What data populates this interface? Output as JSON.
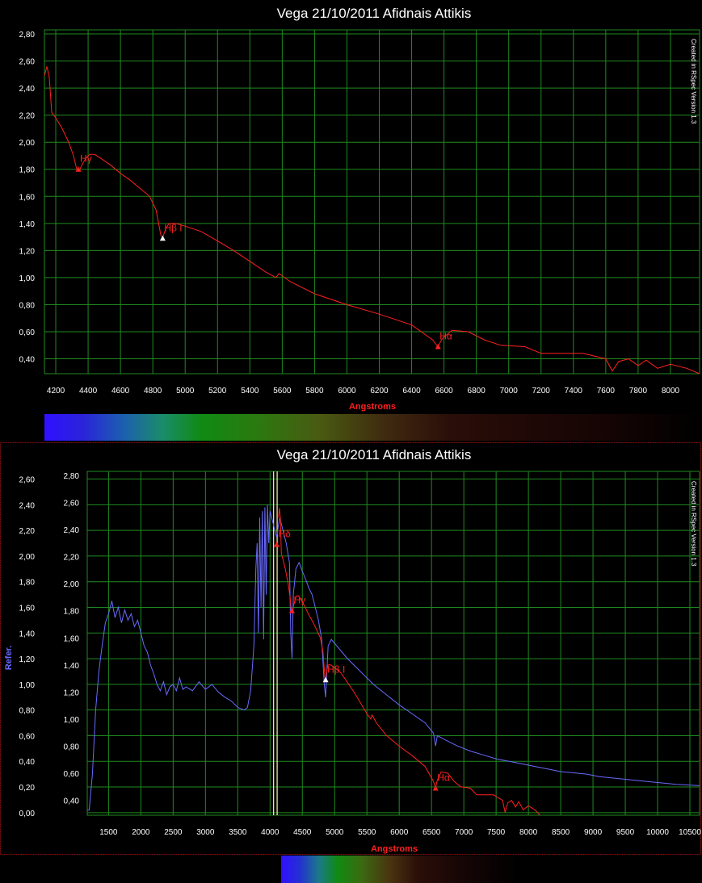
{
  "chart_data": [
    {
      "type": "line",
      "title": "Vega 21/10/2011 Afidnais Attikis",
      "xlabel": "Angstroms",
      "ylabel": "",
      "watermark": "Created in RSpec Version 1.3",
      "xlim": [
        4130,
        8180
      ],
      "ylim": [
        0.29,
        2.83
      ],
      "x_ticks": [
        "4200",
        "4400",
        "4600",
        "4800",
        "5000",
        "5200",
        "5400",
        "5600",
        "5800",
        "6000",
        "6200",
        "6400",
        "6600",
        "6800",
        "7000",
        "7200",
        "7400",
        "7600",
        "7800",
        "8000"
      ],
      "y_ticks": [
        "0,40",
        "0,60",
        "0,80",
        "1,00",
        "1,20",
        "1,40",
        "1,60",
        "1,80",
        "2,00",
        "2,20",
        "2,40",
        "2,60",
        "2,80"
      ],
      "grid": true,
      "series": [
        {
          "color": "#ff2020",
          "points": [
            [
              4130,
              2.49
            ],
            [
              4145,
              2.56
            ],
            [
              4160,
              2.48
            ],
            [
              4175,
              2.22
            ],
            [
              4200,
              2.18
            ],
            [
              4240,
              2.1
            ],
            [
              4280,
              2.0
            ],
            [
              4310,
              1.9
            ],
            [
              4330,
              1.8
            ],
            [
              4345,
              1.79
            ],
            [
              4365,
              1.84
            ],
            [
              4385,
              1.88
            ],
            [
              4410,
              1.91
            ],
            [
              4440,
              1.91
            ],
            [
              4480,
              1.88
            ],
            [
              4540,
              1.83
            ],
            [
              4600,
              1.77
            ],
            [
              4660,
              1.72
            ],
            [
              4720,
              1.66
            ],
            [
              4780,
              1.6
            ],
            [
              4820,
              1.5
            ],
            [
              4850,
              1.31
            ],
            [
              4862,
              1.3
            ],
            [
              4880,
              1.36
            ],
            [
              4900,
              1.4
            ],
            [
              4940,
              1.4
            ],
            [
              5000,
              1.38
            ],
            [
              5100,
              1.34
            ],
            [
              5200,
              1.27
            ],
            [
              5300,
              1.2
            ],
            [
              5400,
              1.12
            ],
            [
              5500,
              1.04
            ],
            [
              5560,
              1.0
            ],
            [
              5580,
              1.03
            ],
            [
              5650,
              0.97
            ],
            [
              5800,
              0.88
            ],
            [
              6000,
              0.8
            ],
            [
              6200,
              0.73
            ],
            [
              6400,
              0.65
            ],
            [
              6530,
              0.54
            ],
            [
              6562,
              0.49
            ],
            [
              6590,
              0.55
            ],
            [
              6650,
              0.61
            ],
            [
              6750,
              0.6
            ],
            [
              6850,
              0.54
            ],
            [
              6950,
              0.5
            ],
            [
              7100,
              0.49
            ],
            [
              7200,
              0.44
            ],
            [
              7300,
              0.44
            ],
            [
              7460,
              0.44
            ],
            [
              7600,
              0.4
            ],
            [
              7640,
              0.31
            ],
            [
              7680,
              0.38
            ],
            [
              7740,
              0.4
            ],
            [
              7800,
              0.35
            ],
            [
              7850,
              0.39
            ],
            [
              7920,
              0.33
            ],
            [
              8000,
              0.36
            ],
            [
              8100,
              0.33
            ],
            [
              8180,
              0.29
            ]
          ]
        }
      ],
      "annotations": [
        {
          "label": "Hγ",
          "x": 4340,
          "y": 1.8,
          "marker": "red"
        },
        {
          "label": "Hβ I",
          "x": 4861,
          "y": 1.29,
          "marker": "white"
        },
        {
          "label": "Hα",
          "x": 6563,
          "y": 0.49,
          "marker": "red"
        }
      ]
    },
    {
      "type": "line",
      "title": "Vega 21/10/2011 Afidnais Attikis",
      "xlabel": "Angstroms",
      "ylabel": "Refer.",
      "watermark": "Created in RSpec Version 1.3",
      "xlim": [
        1170,
        10650
      ],
      "ylim_left": [
        -0.02,
        2.66
      ],
      "ylim_right": [
        0.29,
        2.83
      ],
      "x_ticks": [
        "1500",
        "2000",
        "2500",
        "3000",
        "3500",
        "4000",
        "4500",
        "5000",
        "5500",
        "6000",
        "6500",
        "7000",
        "7500",
        "8000",
        "8500",
        "9000",
        "9500",
        "10000",
        "10500"
      ],
      "y_ticks_left": [
        "0,00",
        "0,20",
        "0,40",
        "0,60",
        "0,80",
        "1,00",
        "1,20",
        "1,40",
        "1,60",
        "1,80",
        "2,00",
        "2,20",
        "2,40",
        "2,60"
      ],
      "y_ticks_right": [
        "0,40",
        "0,60",
        "0,80",
        "1,00",
        "1,20",
        "1,40",
        "1,60",
        "1,80",
        "2,00",
        "2,20",
        "2,40",
        "2,60",
        "2,80"
      ],
      "grid": true,
      "vertical_lines": [
        {
          "x": 4055,
          "color": "#f8f8a8"
        },
        {
          "x": 4110,
          "color": "#f8f8a8"
        }
      ],
      "series": [
        {
          "color": "#6a6aff",
          "axis": "left",
          "points": [
            [
              1170,
              0.02
            ],
            [
              1200,
              0.02
            ],
            [
              1250,
              0.3
            ],
            [
              1300,
              0.8
            ],
            [
              1350,
              1.1
            ],
            [
              1400,
              1.3
            ],
            [
              1450,
              1.48
            ],
            [
              1500,
              1.55
            ],
            [
              1550,
              1.65
            ],
            [
              1600,
              1.52
            ],
            [
              1650,
              1.6
            ],
            [
              1700,
              1.48
            ],
            [
              1750,
              1.58
            ],
            [
              1800,
              1.5
            ],
            [
              1850,
              1.55
            ],
            [
              1900,
              1.45
            ],
            [
              1950,
              1.5
            ],
            [
              2000,
              1.4
            ],
            [
              2050,
              1.3
            ],
            [
              2100,
              1.25
            ],
            [
              2150,
              1.15
            ],
            [
              2200,
              1.08
            ],
            [
              2250,
              1.0
            ],
            [
              2300,
              0.95
            ],
            [
              2350,
              1.02
            ],
            [
              2400,
              0.92
            ],
            [
              2450,
              0.98
            ],
            [
              2500,
              1.0
            ],
            [
              2550,
              0.95
            ],
            [
              2600,
              1.05
            ],
            [
              2650,
              0.96
            ],
            [
              2700,
              0.98
            ],
            [
              2800,
              0.95
            ],
            [
              2900,
              1.02
            ],
            [
              3000,
              0.96
            ],
            [
              3100,
              1.0
            ],
            [
              3200,
              0.94
            ],
            [
              3300,
              0.9
            ],
            [
              3400,
              0.87
            ],
            [
              3500,
              0.82
            ],
            [
              3600,
              0.8
            ],
            [
              3650,
              0.82
            ],
            [
              3700,
              0.95
            ],
            [
              3750,
              1.3
            ],
            [
              3780,
              1.9
            ],
            [
              3800,
              2.1
            ],
            [
              3820,
              1.4
            ],
            [
              3840,
              2.3
            ],
            [
              3860,
              1.6
            ],
            [
              3880,
              2.35
            ],
            [
              3900,
              1.35
            ],
            [
              3920,
              2.38
            ],
            [
              3940,
              1.7
            ],
            [
              3960,
              2.4
            ],
            [
              3980,
              2.1
            ],
            [
              4000,
              2.35
            ],
            [
              4050,
              2.25
            ],
            [
              4100,
              2.15
            ],
            [
              4150,
              2.3
            ],
            [
              4200,
              2.2
            ],
            [
              4250,
              2.1
            ],
            [
              4300,
              1.95
            ],
            [
              4320,
              1.4
            ],
            [
              4340,
              1.2
            ],
            [
              4360,
              1.7
            ],
            [
              4400,
              1.9
            ],
            [
              4450,
              1.95
            ],
            [
              4500,
              1.88
            ],
            [
              4550,
              1.82
            ],
            [
              4600,
              1.75
            ],
            [
              4650,
              1.7
            ],
            [
              4700,
              1.6
            ],
            [
              4750,
              1.5
            ],
            [
              4800,
              1.35
            ],
            [
              4840,
              1.0
            ],
            [
              4861,
              0.9
            ],
            [
              4880,
              1.1
            ],
            [
              4900,
              1.3
            ],
            [
              4950,
              1.35
            ],
            [
              5000,
              1.32
            ],
            [
              5200,
              1.2
            ],
            [
              5400,
              1.1
            ],
            [
              5600,
              1.0
            ],
            [
              5800,
              0.92
            ],
            [
              6000,
              0.84
            ],
            [
              6200,
              0.77
            ],
            [
              6400,
              0.7
            ],
            [
              6530,
              0.62
            ],
            [
              6563,
              0.52
            ],
            [
              6590,
              0.6
            ],
            [
              6700,
              0.57
            ],
            [
              6900,
              0.52
            ],
            [
              7100,
              0.48
            ],
            [
              7300,
              0.45
            ],
            [
              7500,
              0.42
            ],
            [
              7700,
              0.4
            ],
            [
              7900,
              0.38
            ],
            [
              8100,
              0.36
            ],
            [
              8300,
              0.34
            ],
            [
              8500,
              0.32
            ],
            [
              8700,
              0.31
            ],
            [
              8900,
              0.3
            ],
            [
              9100,
              0.28
            ],
            [
              9300,
              0.27
            ],
            [
              9500,
              0.26
            ],
            [
              9700,
              0.25
            ],
            [
              9900,
              0.24
            ],
            [
              10100,
              0.23
            ],
            [
              10300,
              0.22
            ],
            [
              10650,
              0.21
            ]
          ]
        },
        {
          "color": "#ff2020",
          "axis": "right",
          "points": [
            [
              4130,
              2.49
            ],
            [
              4145,
              2.56
            ],
            [
              4160,
              2.48
            ],
            [
              4175,
              2.22
            ],
            [
              4200,
              2.18
            ],
            [
              4240,
              2.1
            ],
            [
              4280,
              2.0
            ],
            [
              4310,
              1.9
            ],
            [
              4330,
              1.8
            ],
            [
              4345,
              1.79
            ],
            [
              4365,
              1.84
            ],
            [
              4385,
              1.88
            ],
            [
              4410,
              1.91
            ],
            [
              4440,
              1.91
            ],
            [
              4480,
              1.88
            ],
            [
              4540,
              1.83
            ],
            [
              4600,
              1.77
            ],
            [
              4660,
              1.72
            ],
            [
              4720,
              1.66
            ],
            [
              4780,
              1.6
            ],
            [
              4820,
              1.5
            ],
            [
              4850,
              1.31
            ],
            [
              4862,
              1.3
            ],
            [
              4880,
              1.36
            ],
            [
              4900,
              1.4
            ],
            [
              4940,
              1.4
            ],
            [
              5000,
              1.38
            ],
            [
              5100,
              1.34
            ],
            [
              5200,
              1.27
            ],
            [
              5300,
              1.2
            ],
            [
              5400,
              1.12
            ],
            [
              5500,
              1.04
            ],
            [
              5560,
              1.0
            ],
            [
              5580,
              1.03
            ],
            [
              5650,
              0.97
            ],
            [
              5800,
              0.88
            ],
            [
              6000,
              0.8
            ],
            [
              6200,
              0.73
            ],
            [
              6400,
              0.65
            ],
            [
              6530,
              0.54
            ],
            [
              6562,
              0.49
            ],
            [
              6590,
              0.55
            ],
            [
              6650,
              0.61
            ],
            [
              6750,
              0.6
            ],
            [
              6850,
              0.54
            ],
            [
              6950,
              0.5
            ],
            [
              7100,
              0.49
            ],
            [
              7200,
              0.44
            ],
            [
              7300,
              0.44
            ],
            [
              7460,
              0.44
            ],
            [
              7600,
              0.4
            ],
            [
              7640,
              0.31
            ],
            [
              7680,
              0.38
            ],
            [
              7740,
              0.4
            ],
            [
              7800,
              0.35
            ],
            [
              7850,
              0.39
            ],
            [
              7920,
              0.33
            ],
            [
              8000,
              0.36
            ],
            [
              8100,
              0.33
            ],
            [
              8180,
              0.29
            ]
          ]
        }
      ],
      "annotations": [
        {
          "label": "Hδ",
          "x": 4102,
          "y": 2.29,
          "marker": "red"
        },
        {
          "label": "Hγ",
          "x": 4340,
          "y": 1.8,
          "marker": "red"
        },
        {
          "label": "Hβ I",
          "x": 4861,
          "y": 1.29,
          "marker": "white"
        },
        {
          "label": "Hα",
          "x": 6563,
          "y": 0.49,
          "marker": "red"
        }
      ]
    }
  ],
  "colors": {
    "background": "#000000",
    "grid": "#1f8a1f",
    "axis_label": "#ff2020",
    "refer_label": "#6a6aff",
    "frame": "#8a1010"
  }
}
